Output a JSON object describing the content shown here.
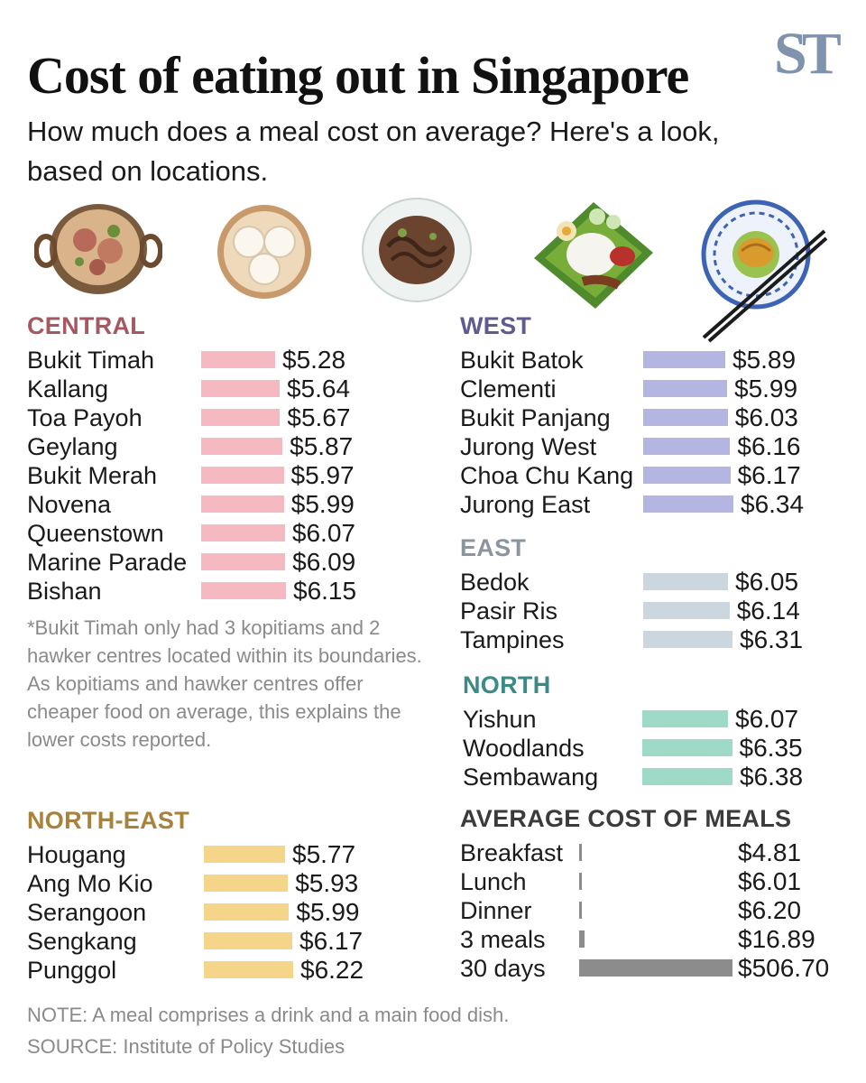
{
  "logo": "ST",
  "title": "Cost of eating out in Singapore",
  "subtitle": "How much does a meal cost on average? Here's a look, based on locations.",
  "footnote": "*Bukit Timah only had 3 kopitiams and 2 hawker centres located within its boundaries. As kopitiams and hawker centres offer cheaper food on average, this explains the lower costs reported.",
  "note": "NOTE: A meal comprises a drink and a main food dish.",
  "source": "SOURCE: Institute of Policy Studies",
  "illustrations": [
    "curry-pot-icon",
    "steamed-buns-icon",
    "noodle-plate-icon",
    "nasi-lemak-icon",
    "curry-puff-plate-icon"
  ],
  "chart_data": [
    {
      "type": "bar",
      "title": "CENTRAL",
      "color": "#f4b9c1",
      "title_color": "#a3595f",
      "categories": [
        "Bukit Timah",
        "Kallang",
        "Toa Payoh",
        "Geylang",
        "Bukit Merah",
        "Novena",
        "Queenstown",
        "Marine Parade",
        "Bishan"
      ],
      "values": [
        5.28,
        5.64,
        5.67,
        5.87,
        5.97,
        5.99,
        6.07,
        6.09,
        6.15
      ],
      "labels": [
        "$5.28",
        "$5.64",
        "$5.67",
        "$5.87",
        "$5.97",
        "$5.99",
        "$6.07",
        "$6.09",
        "$6.15"
      ]
    },
    {
      "type": "bar",
      "title": "WEST",
      "color": "#b4b6e1",
      "title_color": "#5d5b8f",
      "categories": [
        "Bukit Batok",
        "Clementi",
        "Bukit Panjang",
        "Jurong West",
        "Choa Chu Kang",
        "Jurong East"
      ],
      "values": [
        5.89,
        5.99,
        6.03,
        6.16,
        6.17,
        6.34
      ],
      "labels": [
        "$5.89",
        "$5.99",
        "$6.03",
        "$6.16",
        "$6.17",
        "$6.34"
      ]
    },
    {
      "type": "bar",
      "title": "EAST",
      "color": "#ccd6df",
      "title_color": "#8c949d",
      "categories": [
        "Bedok",
        "Pasir Ris",
        "Tampines"
      ],
      "values": [
        6.05,
        6.14,
        6.31
      ],
      "labels": [
        "$6.05",
        "$6.14",
        "$6.31"
      ]
    },
    {
      "type": "bar",
      "title": "NORTH",
      "color": "#9fd9c8",
      "title_color": "#3a8a86",
      "categories": [
        "Yishun",
        "Woodlands",
        "Sembawang"
      ],
      "values": [
        6.07,
        6.35,
        6.38
      ],
      "labels": [
        "$6.07",
        "$6.35",
        "$6.38"
      ]
    },
    {
      "type": "bar",
      "title": "NORTH-EAST",
      "color": "#f4d58a",
      "title_color": "#a8823a",
      "categories": [
        "Hougang",
        "Ang Mo Kio",
        "Serangoon",
        "Sengkang",
        "Punggol"
      ],
      "values": [
        5.77,
        5.93,
        5.99,
        6.17,
        6.22
      ],
      "labels": [
        "$5.77",
        "$5.93",
        "$5.99",
        "$6.17",
        "$6.22"
      ]
    },
    {
      "type": "bar",
      "title": "AVERAGE COST OF MEALS",
      "color": "#8c8c8c",
      "title_color": "#3b3b3b",
      "categories": [
        "Breakfast",
        "Lunch",
        "Dinner",
        "3 meals",
        "30 days"
      ],
      "values": [
        4.81,
        6.01,
        6.2,
        16.89,
        506.7
      ],
      "labels": [
        "$4.81",
        "$6.01",
        "$6.20",
        "$16.89",
        "$506.70"
      ]
    }
  ]
}
